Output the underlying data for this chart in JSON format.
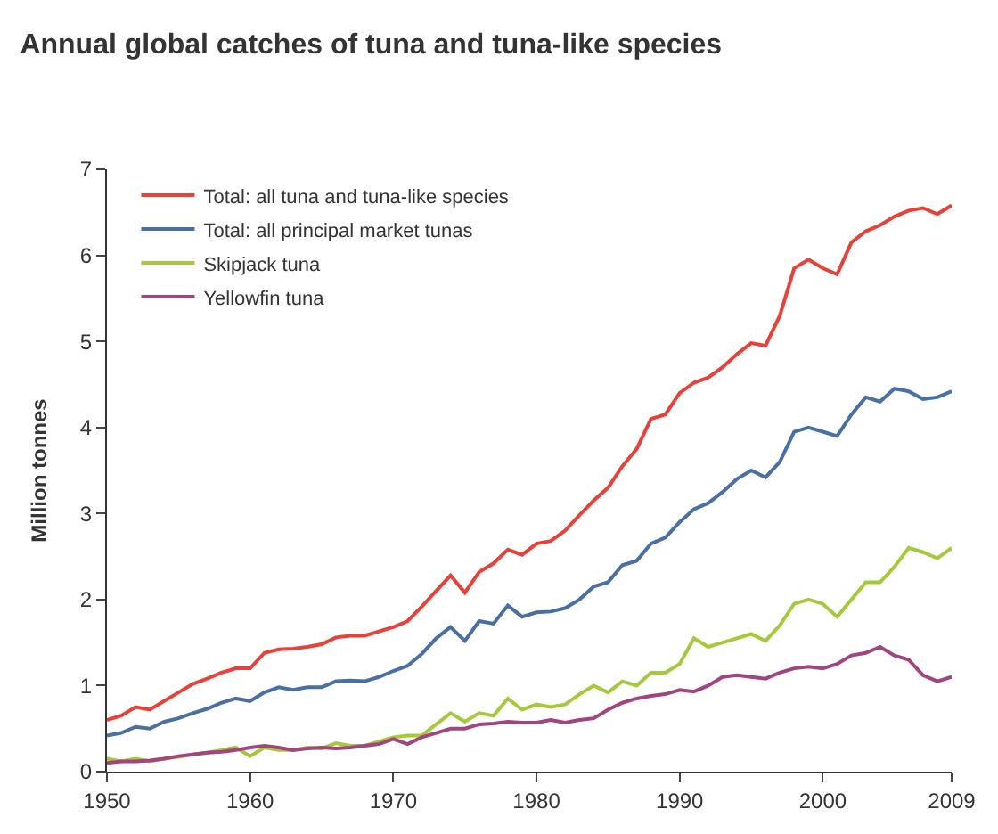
{
  "chart_data": {
    "type": "line",
    "title": "Annual global catches of tuna and tuna-like species",
    "ylabel": "Million tonnes",
    "x": [
      1950,
      1951,
      1952,
      1953,
      1954,
      1955,
      1956,
      1957,
      1958,
      1959,
      1960,
      1961,
      1962,
      1963,
      1964,
      1965,
      1966,
      1967,
      1968,
      1969,
      1970,
      1971,
      1972,
      1973,
      1974,
      1975,
      1976,
      1977,
      1978,
      1979,
      1980,
      1981,
      1982,
      1983,
      1984,
      1985,
      1986,
      1987,
      1988,
      1989,
      1990,
      1991,
      1992,
      1993,
      1994,
      1995,
      1996,
      1997,
      1998,
      1999,
      2000,
      2001,
      2002,
      2003,
      2004,
      2005,
      2006,
      2007,
      2008,
      2009
    ],
    "series": [
      {
        "name": "Total: all tuna and tuna-like species",
        "color": "#e8413a",
        "values": [
          0.6,
          0.65,
          0.75,
          0.72,
          0.82,
          0.92,
          1.02,
          1.08,
          1.15,
          1.2,
          1.2,
          1.38,
          1.42,
          1.43,
          1.45,
          1.48,
          1.56,
          1.58,
          1.58,
          1.63,
          1.68,
          1.75,
          1.92,
          2.1,
          2.28,
          2.08,
          2.32,
          2.42,
          2.58,
          2.52,
          2.65,
          2.68,
          2.8,
          2.98,
          3.15,
          3.3,
          3.55,
          3.75,
          4.1,
          4.15,
          4.4,
          4.52,
          4.58,
          4.7,
          4.85,
          4.98,
          4.95,
          5.3,
          5.85,
          5.95,
          5.85,
          5.78,
          6.15,
          6.28,
          6.35,
          6.45,
          6.52,
          6.55,
          6.48,
          6.58
        ]
      },
      {
        "name": "Total: all principal market tunas",
        "color": "#4a6fa5",
        "values": [
          0.42,
          0.45,
          0.52,
          0.5,
          0.58,
          0.62,
          0.68,
          0.73,
          0.8,
          0.85,
          0.82,
          0.92,
          0.98,
          0.95,
          0.98,
          0.98,
          1.05,
          1.06,
          1.05,
          1.1,
          1.17,
          1.23,
          1.37,
          1.55,
          1.68,
          1.52,
          1.75,
          1.72,
          1.93,
          1.8,
          1.85,
          1.86,
          1.9,
          2.0,
          2.15,
          2.2,
          2.4,
          2.45,
          2.65,
          2.72,
          2.9,
          3.05,
          3.12,
          3.25,
          3.4,
          3.5,
          3.42,
          3.6,
          3.95,
          4.0,
          3.95,
          3.9,
          4.15,
          4.35,
          4.3,
          4.45,
          4.42,
          4.33,
          4.35,
          4.42
        ]
      },
      {
        "name": "Skipjack tuna",
        "color": "#a5c93a",
        "values": [
          0.15,
          0.12,
          0.15,
          0.12,
          0.15,
          0.17,
          0.2,
          0.22,
          0.25,
          0.28,
          0.18,
          0.28,
          0.25,
          0.25,
          0.28,
          0.27,
          0.33,
          0.3,
          0.3,
          0.35,
          0.4,
          0.42,
          0.42,
          0.55,
          0.68,
          0.58,
          0.68,
          0.65,
          0.85,
          0.72,
          0.78,
          0.75,
          0.78,
          0.9,
          1.0,
          0.92,
          1.05,
          1.0,
          1.15,
          1.15,
          1.25,
          1.55,
          1.45,
          1.5,
          1.55,
          1.6,
          1.52,
          1.7,
          1.95,
          2.0,
          1.95,
          1.8,
          2.0,
          2.2,
          2.2,
          2.38,
          2.6,
          2.55,
          2.48,
          2.6
        ]
      },
      {
        "name": "Yellowfin tuna",
        "color": "#a0457f",
        "values": [
          0.1,
          0.12,
          0.12,
          0.13,
          0.15,
          0.18,
          0.2,
          0.22,
          0.23,
          0.25,
          0.28,
          0.3,
          0.28,
          0.25,
          0.27,
          0.28,
          0.27,
          0.28,
          0.3,
          0.32,
          0.38,
          0.32,
          0.4,
          0.45,
          0.5,
          0.5,
          0.55,
          0.56,
          0.58,
          0.57,
          0.57,
          0.6,
          0.57,
          0.6,
          0.62,
          0.72,
          0.8,
          0.85,
          0.88,
          0.9,
          0.95,
          0.93,
          1.0,
          1.1,
          1.12,
          1.1,
          1.08,
          1.15,
          1.2,
          1.22,
          1.2,
          1.25,
          1.35,
          1.38,
          1.45,
          1.35,
          1.3,
          1.12,
          1.05,
          1.1
        ]
      }
    ],
    "xlim": [
      1950,
      2009
    ],
    "xticks": [
      1950,
      1960,
      1970,
      1980,
      1990,
      2000,
      2009
    ],
    "ylim": [
      0,
      7
    ],
    "yticks": [
      0,
      1,
      2,
      3,
      4,
      5,
      6,
      7
    ],
    "legend": "top left",
    "marker": "none",
    "line_style": "solid"
  }
}
